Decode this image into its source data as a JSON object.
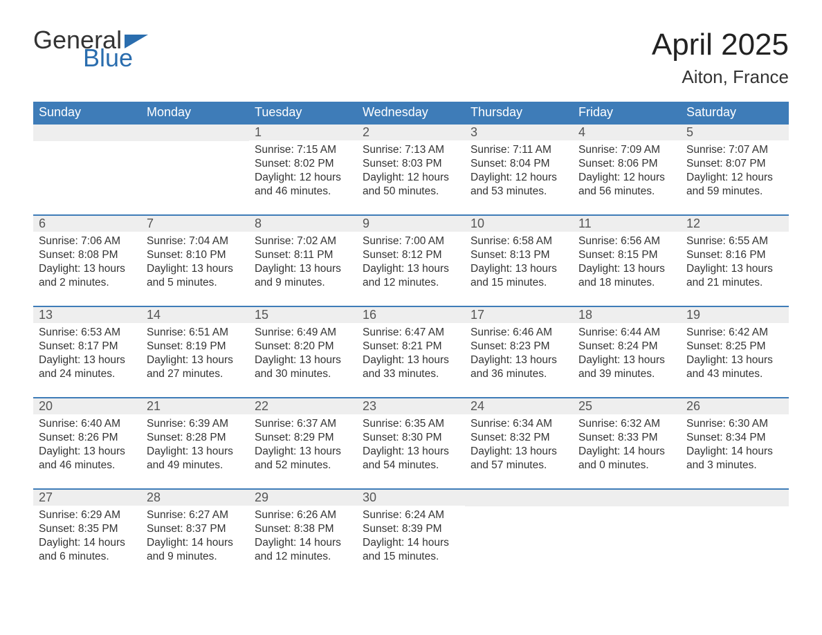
{
  "logo": {
    "text_general": "General",
    "text_blue": "Blue",
    "triangle_color": "#2a6dae"
  },
  "title": "April 2025",
  "location": "Aiton, France",
  "colors": {
    "header_bg": "#3e7cb8",
    "header_text": "#ffffff",
    "daynum_bg": "#eeeeee",
    "row_border": "#3e7cb8",
    "body_text": "#333333",
    "background": "#ffffff"
  },
  "typography": {
    "title_fontsize": 44,
    "location_fontsize": 26,
    "weekday_fontsize": 18,
    "daynum_fontsize": 18,
    "body_fontsize": 15.5,
    "font_family": "Segoe UI"
  },
  "weekdays": [
    "Sunday",
    "Monday",
    "Tuesday",
    "Wednesday",
    "Thursday",
    "Friday",
    "Saturday"
  ],
  "weeks": [
    [
      null,
      null,
      {
        "day": "1",
        "sunrise": "Sunrise: 7:15 AM",
        "sunset": "Sunset: 8:02 PM",
        "daylight1": "Daylight: 12 hours",
        "daylight2": "and 46 minutes."
      },
      {
        "day": "2",
        "sunrise": "Sunrise: 7:13 AM",
        "sunset": "Sunset: 8:03 PM",
        "daylight1": "Daylight: 12 hours",
        "daylight2": "and 50 minutes."
      },
      {
        "day": "3",
        "sunrise": "Sunrise: 7:11 AM",
        "sunset": "Sunset: 8:04 PM",
        "daylight1": "Daylight: 12 hours",
        "daylight2": "and 53 minutes."
      },
      {
        "day": "4",
        "sunrise": "Sunrise: 7:09 AM",
        "sunset": "Sunset: 8:06 PM",
        "daylight1": "Daylight: 12 hours",
        "daylight2": "and 56 minutes."
      },
      {
        "day": "5",
        "sunrise": "Sunrise: 7:07 AM",
        "sunset": "Sunset: 8:07 PM",
        "daylight1": "Daylight: 12 hours",
        "daylight2": "and 59 minutes."
      }
    ],
    [
      {
        "day": "6",
        "sunrise": "Sunrise: 7:06 AM",
        "sunset": "Sunset: 8:08 PM",
        "daylight1": "Daylight: 13 hours",
        "daylight2": "and 2 minutes."
      },
      {
        "day": "7",
        "sunrise": "Sunrise: 7:04 AM",
        "sunset": "Sunset: 8:10 PM",
        "daylight1": "Daylight: 13 hours",
        "daylight2": "and 5 minutes."
      },
      {
        "day": "8",
        "sunrise": "Sunrise: 7:02 AM",
        "sunset": "Sunset: 8:11 PM",
        "daylight1": "Daylight: 13 hours",
        "daylight2": "and 9 minutes."
      },
      {
        "day": "9",
        "sunrise": "Sunrise: 7:00 AM",
        "sunset": "Sunset: 8:12 PM",
        "daylight1": "Daylight: 13 hours",
        "daylight2": "and 12 minutes."
      },
      {
        "day": "10",
        "sunrise": "Sunrise: 6:58 AM",
        "sunset": "Sunset: 8:13 PM",
        "daylight1": "Daylight: 13 hours",
        "daylight2": "and 15 minutes."
      },
      {
        "day": "11",
        "sunrise": "Sunrise: 6:56 AM",
        "sunset": "Sunset: 8:15 PM",
        "daylight1": "Daylight: 13 hours",
        "daylight2": "and 18 minutes."
      },
      {
        "day": "12",
        "sunrise": "Sunrise: 6:55 AM",
        "sunset": "Sunset: 8:16 PM",
        "daylight1": "Daylight: 13 hours",
        "daylight2": "and 21 minutes."
      }
    ],
    [
      {
        "day": "13",
        "sunrise": "Sunrise: 6:53 AM",
        "sunset": "Sunset: 8:17 PM",
        "daylight1": "Daylight: 13 hours",
        "daylight2": "and 24 minutes."
      },
      {
        "day": "14",
        "sunrise": "Sunrise: 6:51 AM",
        "sunset": "Sunset: 8:19 PM",
        "daylight1": "Daylight: 13 hours",
        "daylight2": "and 27 minutes."
      },
      {
        "day": "15",
        "sunrise": "Sunrise: 6:49 AM",
        "sunset": "Sunset: 8:20 PM",
        "daylight1": "Daylight: 13 hours",
        "daylight2": "and 30 minutes."
      },
      {
        "day": "16",
        "sunrise": "Sunrise: 6:47 AM",
        "sunset": "Sunset: 8:21 PM",
        "daylight1": "Daylight: 13 hours",
        "daylight2": "and 33 minutes."
      },
      {
        "day": "17",
        "sunrise": "Sunrise: 6:46 AM",
        "sunset": "Sunset: 8:23 PM",
        "daylight1": "Daylight: 13 hours",
        "daylight2": "and 36 minutes."
      },
      {
        "day": "18",
        "sunrise": "Sunrise: 6:44 AM",
        "sunset": "Sunset: 8:24 PM",
        "daylight1": "Daylight: 13 hours",
        "daylight2": "and 39 minutes."
      },
      {
        "day": "19",
        "sunrise": "Sunrise: 6:42 AM",
        "sunset": "Sunset: 8:25 PM",
        "daylight1": "Daylight: 13 hours",
        "daylight2": "and 43 minutes."
      }
    ],
    [
      {
        "day": "20",
        "sunrise": "Sunrise: 6:40 AM",
        "sunset": "Sunset: 8:26 PM",
        "daylight1": "Daylight: 13 hours",
        "daylight2": "and 46 minutes."
      },
      {
        "day": "21",
        "sunrise": "Sunrise: 6:39 AM",
        "sunset": "Sunset: 8:28 PM",
        "daylight1": "Daylight: 13 hours",
        "daylight2": "and 49 minutes."
      },
      {
        "day": "22",
        "sunrise": "Sunrise: 6:37 AM",
        "sunset": "Sunset: 8:29 PM",
        "daylight1": "Daylight: 13 hours",
        "daylight2": "and 52 minutes."
      },
      {
        "day": "23",
        "sunrise": "Sunrise: 6:35 AM",
        "sunset": "Sunset: 8:30 PM",
        "daylight1": "Daylight: 13 hours",
        "daylight2": "and 54 minutes."
      },
      {
        "day": "24",
        "sunrise": "Sunrise: 6:34 AM",
        "sunset": "Sunset: 8:32 PM",
        "daylight1": "Daylight: 13 hours",
        "daylight2": "and 57 minutes."
      },
      {
        "day": "25",
        "sunrise": "Sunrise: 6:32 AM",
        "sunset": "Sunset: 8:33 PM",
        "daylight1": "Daylight: 14 hours",
        "daylight2": "and 0 minutes."
      },
      {
        "day": "26",
        "sunrise": "Sunrise: 6:30 AM",
        "sunset": "Sunset: 8:34 PM",
        "daylight1": "Daylight: 14 hours",
        "daylight2": "and 3 minutes."
      }
    ],
    [
      {
        "day": "27",
        "sunrise": "Sunrise: 6:29 AM",
        "sunset": "Sunset: 8:35 PM",
        "daylight1": "Daylight: 14 hours",
        "daylight2": "and 6 minutes."
      },
      {
        "day": "28",
        "sunrise": "Sunrise: 6:27 AM",
        "sunset": "Sunset: 8:37 PM",
        "daylight1": "Daylight: 14 hours",
        "daylight2": "and 9 minutes."
      },
      {
        "day": "29",
        "sunrise": "Sunrise: 6:26 AM",
        "sunset": "Sunset: 8:38 PM",
        "daylight1": "Daylight: 14 hours",
        "daylight2": "and 12 minutes."
      },
      {
        "day": "30",
        "sunrise": "Sunrise: 6:24 AM",
        "sunset": "Sunset: 8:39 PM",
        "daylight1": "Daylight: 14 hours",
        "daylight2": "and 15 minutes."
      },
      null,
      null,
      null
    ]
  ]
}
